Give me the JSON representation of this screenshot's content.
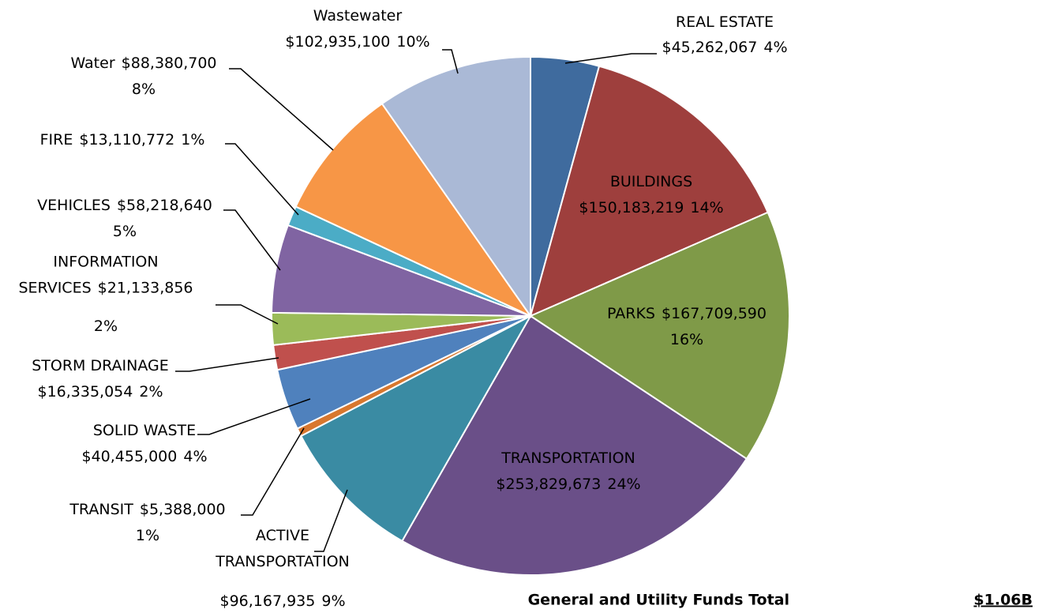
{
  "chart_data": {
    "type": "pie",
    "categories": [
      "REAL ESTATE",
      "BUILDINGS",
      "PARKS",
      "TRANSPORTATION",
      "ACTIVE TRANSPORTATION",
      "TRANSIT",
      "SOLID WASTE",
      "STORM DRAINAGE",
      "INFORMATION SERVICES",
      "VEHICLES",
      "FIRE",
      "Water",
      "Wastewater"
    ],
    "values": [
      45262067,
      150183219,
      167709590,
      253829673,
      96167935,
      5388000,
      40455000,
      16335054,
      21133856,
      58218640,
      13110772,
      88380700,
      102935100
    ],
    "value_labels": [
      "$45,262,067",
      "$150,183,219",
      "$167,709,590",
      "$253,829,673",
      "$96,167,935",
      "$5,388,000",
      "$40,455,000",
      "$16,335,054",
      "$21,133,856",
      "$58,218,640",
      "$13,110,772",
      "$88,380,700",
      "$102,935,100"
    ],
    "percent_labels": [
      "4%",
      "14%",
      "16%",
      "24%",
      "9%",
      "1%",
      "4%",
      "2%",
      "2%",
      "5%",
      "1%",
      "8%",
      "10%"
    ],
    "colors": [
      "#3f6b9e",
      "#9e3f3d",
      "#7f9a48",
      "#6a4f88",
      "#3a8ba3",
      "#d8772e",
      "#4f81bd",
      "#c0504d",
      "#9bbb59",
      "#8064a2",
      "#4bacc6",
      "#f79646",
      "#aab9d6"
    ],
    "annotations": [
      "General and Utility Funds Total",
      "$1.06B"
    ]
  }
}
